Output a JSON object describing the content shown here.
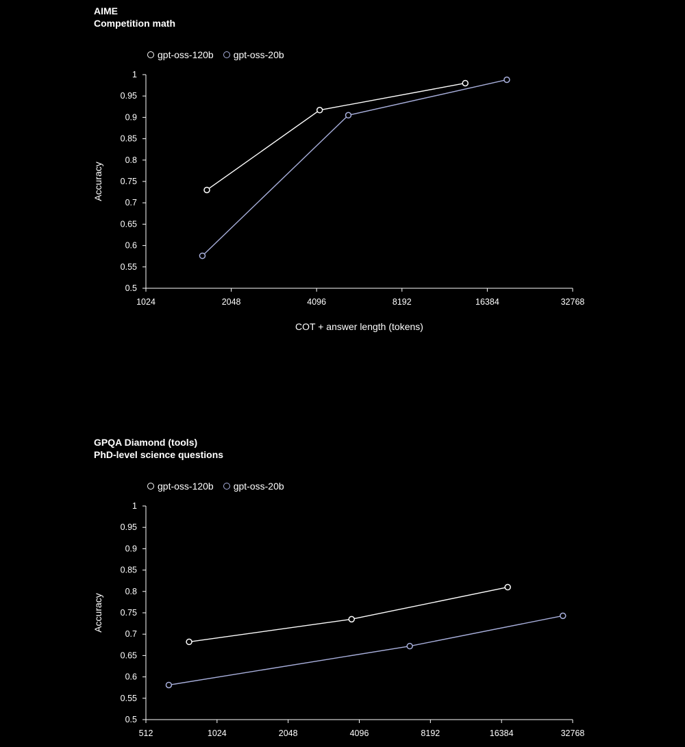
{
  "charts": [
    {
      "id": "aime",
      "title": "AIME",
      "subtitle": "Competition math",
      "legend": [
        "gpt-oss-120b",
        "gpt-oss-20b"
      ]
    },
    {
      "id": "gpqa",
      "title": "GPQA Diamond (tools)",
      "subtitle": "PhD-level science questions",
      "legend": [
        "gpt-oss-120b",
        "gpt-oss-20b"
      ]
    }
  ],
  "colors": {
    "series_120b": "#ffffff",
    "series_20b": "#a9b0dd",
    "axis": "#ffffff",
    "background": "#000000"
  },
  "chart_data": [
    {
      "type": "line",
      "title": "AIME",
      "subtitle": "Competition math",
      "xlabel": "COT + answer length (tokens)",
      "ylabel": "Accuracy",
      "x_scale": "log2",
      "xlim": [
        1024,
        32768
      ],
      "x_ticks": [
        "1024",
        "2048",
        "4096",
        "8192",
        "16384",
        "32768"
      ],
      "ylim": [
        0.5,
        1
      ],
      "y_ticks": [
        "1",
        "0.95",
        "0.9",
        "0.85",
        "0.8",
        "0.75",
        "0.7",
        "0.65",
        "0.6",
        "0.55",
        "0.5"
      ],
      "grid": false,
      "legend_position": "top-left",
      "series": [
        {
          "name": "gpt-oss-120b",
          "x": [
            1680,
            4200,
            13700
          ],
          "y": [
            0.73,
            0.917,
            0.98
          ]
        },
        {
          "name": "gpt-oss-20b",
          "x": [
            1620,
            5300,
            19200
          ],
          "y": [
            0.576,
            0.905,
            0.988
          ]
        }
      ]
    },
    {
      "type": "line",
      "title": "GPQA Diamond (tools)",
      "subtitle": "PhD-level science questions",
      "xlabel": "",
      "ylabel": "Accuracy",
      "x_scale": "log2",
      "xlim": [
        512,
        32768
      ],
      "x_ticks": [
        "512",
        "1024",
        "2048",
        "4096",
        "8192",
        "16384",
        "32768"
      ],
      "ylim": [
        0.5,
        1
      ],
      "y_ticks": [
        "1",
        "0.95",
        "0.9",
        "0.85",
        "0.8",
        "0.75",
        "0.7",
        "0.65",
        "0.6",
        "0.55",
        "0.5"
      ],
      "grid": false,
      "legend_position": "top-left",
      "series": [
        {
          "name": "gpt-oss-120b",
          "x": [
            780,
            3800,
            17400
          ],
          "y": [
            0.682,
            0.735,
            0.81
          ]
        },
        {
          "name": "gpt-oss-20b",
          "x": [
            640,
            6700,
            29800
          ],
          "y": [
            0.581,
            0.672,
            0.743
          ]
        }
      ]
    }
  ]
}
